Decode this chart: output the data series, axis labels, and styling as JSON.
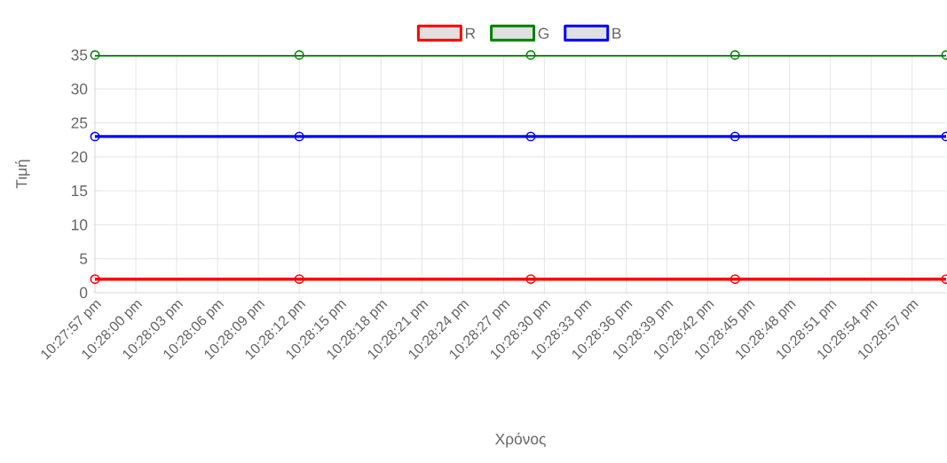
{
  "chart_data": {
    "type": "line",
    "xlabel": "Χρόνος",
    "ylabel": "Τιμή",
    "x": [
      22.465833,
      22.47,
      22.474722,
      22.478889,
      22.483194
    ],
    "series": [
      {
        "name": "R",
        "color": "#ff0000",
        "values": [
          2,
          2,
          2,
          2,
          2
        ]
      },
      {
        "name": "G",
        "color": "#008000",
        "values": [
          35,
          35,
          35,
          35,
          35
        ]
      },
      {
        "name": "B",
        "color": "#0000ff",
        "values": [
          23,
          23,
          23,
          23,
          23
        ]
      }
    ],
    "xlim": [
      22.465833,
      22.483194
    ],
    "xticks": [
      {
        "value": 22.465833,
        "label": "10:27:57 pm"
      },
      {
        "value": 22.466667,
        "label": "10:28:00 pm"
      },
      {
        "value": 22.4675,
        "label": "10:28:03 pm"
      },
      {
        "value": 22.468333,
        "label": "10:28:06 pm"
      },
      {
        "value": 22.469167,
        "label": "10:28:09 pm"
      },
      {
        "value": 22.47,
        "label": "10:28:12 pm"
      },
      {
        "value": 22.470833,
        "label": "10:28:15 pm"
      },
      {
        "value": 22.471667,
        "label": "10:28:18 pm"
      },
      {
        "value": 22.4725,
        "label": "10:28:21 pm"
      },
      {
        "value": 22.473333,
        "label": "10:28:24 pm"
      },
      {
        "value": 22.474167,
        "label": "10:28:27 pm"
      },
      {
        "value": 22.475,
        "label": "10:28:30 pm"
      },
      {
        "value": 22.475833,
        "label": "10:28:33 pm"
      },
      {
        "value": 22.476667,
        "label": "10:28:36 pm"
      },
      {
        "value": 22.4775,
        "label": "10:28:39 pm"
      },
      {
        "value": 22.478333,
        "label": "10:28:42 pm"
      },
      {
        "value": 22.479167,
        "label": "10:28:45 pm"
      },
      {
        "value": 22.48,
        "label": "10:28:48 pm"
      },
      {
        "value": 22.480833,
        "label": "10:28:51 pm"
      },
      {
        "value": 22.481667,
        "label": "10:28:54 pm"
      },
      {
        "value": 22.4825,
        "label": "10:28:57 pm"
      }
    ],
    "ylim": [
      0,
      35
    ],
    "yticks": [
      0,
      5,
      10,
      15,
      20,
      25,
      30,
      35
    ],
    "grid": true,
    "legend": "top",
    "marker": "circle",
    "line_style": "solid"
  }
}
